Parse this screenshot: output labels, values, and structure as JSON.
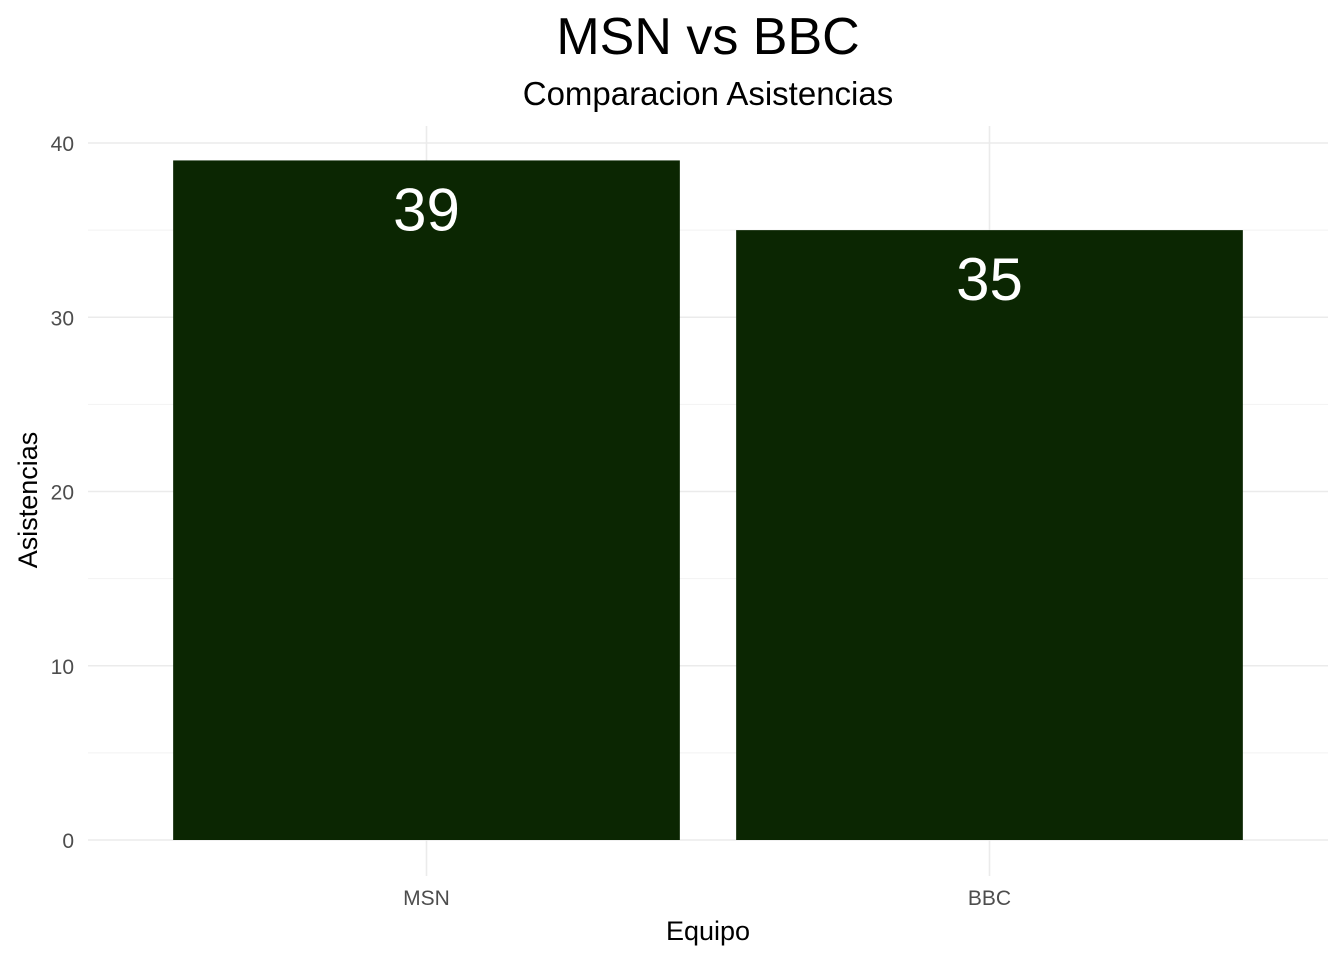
{
  "chart_data": {
    "type": "bar",
    "title": "MSN vs BBC",
    "subtitle": "Comparacion Asistencias",
    "xlabel": "Equipo",
    "ylabel": "Asistencias",
    "categories": [
      "MSN",
      "BBC"
    ],
    "values": [
      39,
      35
    ],
    "data_labels": [
      "39",
      "35"
    ],
    "ylim": [
      0,
      40
    ],
    "yticks": [
      0,
      10,
      20,
      30,
      40
    ],
    "ytick_labels": [
      "0",
      "10",
      "20",
      "30",
      "40"
    ],
    "grid": true,
    "legend": "none",
    "colors": {
      "bar": "#0b2602",
      "data_label": "#ffffff",
      "background": "#ffffff"
    }
  }
}
